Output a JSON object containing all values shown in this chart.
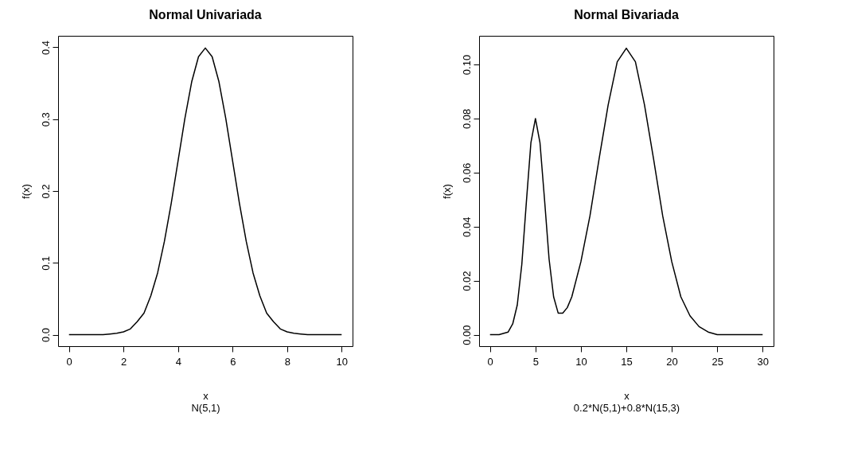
{
  "chart_data": [
    {
      "type": "line",
      "title": "Normal Univariada",
      "xlabel": "x",
      "ylabel": "f(x)",
      "annotations": [
        "N(5,1)"
      ],
      "grid": false,
      "marker": "none",
      "line_style": "solid",
      "xlim": [
        -0.4,
        10.4
      ],
      "ylim": [
        -0.016,
        0.416
      ],
      "xticks": [
        0,
        2,
        4,
        6,
        8,
        10
      ],
      "yticks": [
        {
          "value": 0,
          "label": "0.0"
        },
        {
          "value": 0.1,
          "label": "0.1"
        },
        {
          "value": 0.2,
          "label": "0.2"
        },
        {
          "value": 0.3,
          "label": "0.3"
        },
        {
          "value": 0.4,
          "label": "0.4"
        }
      ],
      "x": [
        0,
        0.25,
        0.5,
        0.75,
        1,
        1.25,
        1.5,
        1.75,
        2,
        2.25,
        2.5,
        2.75,
        3,
        3.25,
        3.5,
        3.75,
        4,
        4.25,
        4.5,
        4.75,
        5,
        5.25,
        5.5,
        5.75,
        6,
        6.25,
        6.5,
        6.75,
        7,
        7.25,
        7.5,
        7.75,
        8,
        8.25,
        8.5,
        8.75,
        9,
        9.25,
        9.5,
        9.75,
        10
      ],
      "series": [
        {
          "color": "#000000",
          "values": [
            0,
            0,
            0,
            0,
            0,
            0,
            0.001,
            0.002,
            0.004,
            0.008,
            0.018,
            0.03,
            0.054,
            0.086,
            0.13,
            0.183,
            0.242,
            0.301,
            0.352,
            0.387,
            0.399,
            0.387,
            0.352,
            0.301,
            0.242,
            0.183,
            0.13,
            0.086,
            0.054,
            0.03,
            0.018,
            0.008,
            0.004,
            0.002,
            0.001,
            0,
            0,
            0,
            0,
            0,
            0
          ]
        }
      ]
    },
    {
      "type": "line",
      "title": "Normal Bivariada",
      "xlabel": "x",
      "ylabel": "f(x)",
      "annotations": [
        "0.2*N(5,1)+0.8*N(15,3)"
      ],
      "grid": false,
      "marker": "none",
      "line_style": "solid",
      "xlim": [
        -1.2,
        31.2
      ],
      "ylim": [
        -0.00425,
        0.1106
      ],
      "xticks": [
        0,
        5,
        10,
        15,
        20,
        25,
        30
      ],
      "yticks": [
        {
          "value": 0,
          "label": "0.00"
        },
        {
          "value": 0.02,
          "label": "0.02"
        },
        {
          "value": 0.04,
          "label": "0.04"
        },
        {
          "value": 0.06,
          "label": "0.06"
        },
        {
          "value": 0.08,
          "label": "0.08"
        },
        {
          "value": 0.1,
          "label": "0.10"
        }
      ],
      "x": [
        0,
        1,
        2,
        2.5,
        3,
        3.5,
        4,
        4.5,
        5,
        5.5,
        6,
        6.5,
        7,
        7.5,
        8,
        8.5,
        9,
        10,
        11,
        12,
        13,
        14,
        15,
        16,
        17,
        18,
        19,
        20,
        21,
        22,
        23,
        24,
        25,
        26,
        27,
        28,
        29,
        30
      ],
      "series": [
        {
          "color": "#000000",
          "values": [
            0,
            0,
            0.001,
            0.004,
            0.011,
            0.026,
            0.049,
            0.071,
            0.08,
            0.071,
            0.05,
            0.028,
            0.014,
            0.008,
            0.008,
            0.01,
            0.014,
            0.027,
            0.044,
            0.065,
            0.085,
            0.101,
            0.106,
            0.101,
            0.085,
            0.065,
            0.044,
            0.027,
            0.014,
            0.007,
            0.003,
            0.001,
            0,
            0,
            0,
            0,
            0,
            0
          ]
        }
      ]
    }
  ]
}
